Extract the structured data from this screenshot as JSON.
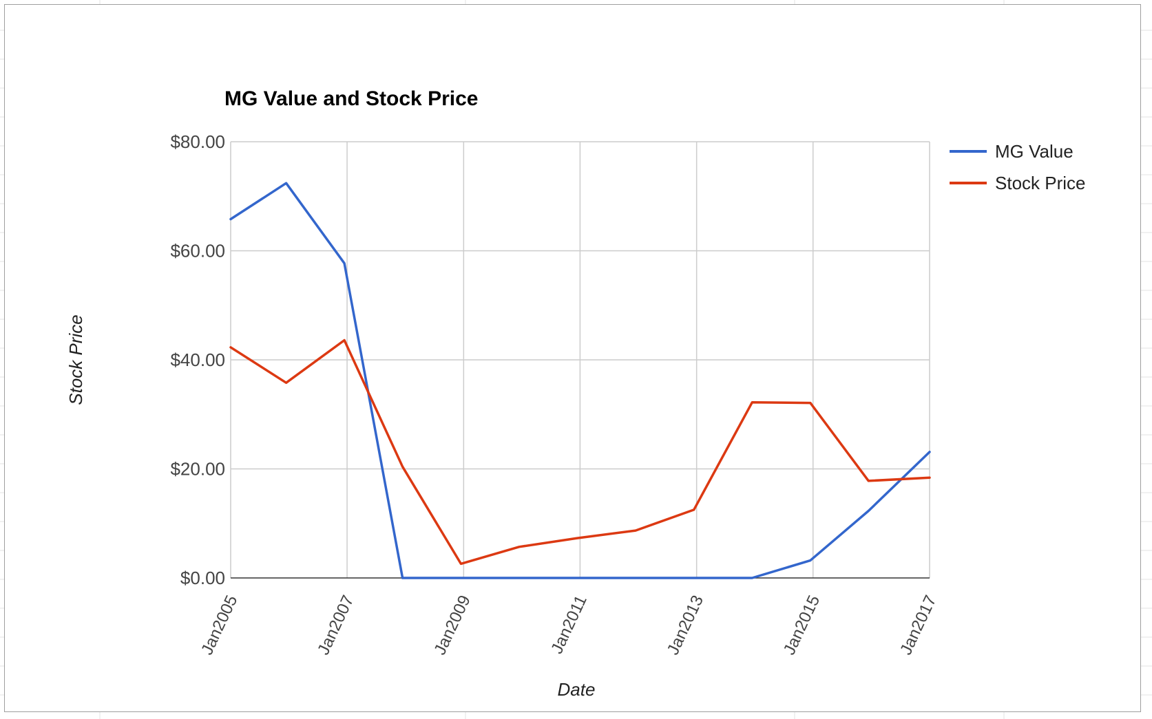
{
  "chart_data": {
    "type": "line",
    "title": "MG Value and Stock Price",
    "xlabel": "Date",
    "ylabel": "Stock Price",
    "x_range": [
      "2005-01-01",
      "2017-01-01"
    ],
    "x_ticks": [
      {
        "date": "2005-01-01",
        "label": "Jan2005"
      },
      {
        "date": "2007-01-01",
        "label": "Jan2007"
      },
      {
        "date": "2009-01-01",
        "label": "Jan2009"
      },
      {
        "date": "2011-01-01",
        "label": "Jan2011"
      },
      {
        "date": "2013-01-01",
        "label": "Jan2013"
      },
      {
        "date": "2015-01-01",
        "label": "Jan2015"
      },
      {
        "date": "2017-01-01",
        "label": "Jan2017"
      }
    ],
    "ylim": [
      0,
      80
    ],
    "y_ticks": [
      {
        "value": 0,
        "label": "$0.00"
      },
      {
        "value": 20,
        "label": "$20.00"
      },
      {
        "value": 40,
        "label": "$40.00"
      },
      {
        "value": 60,
        "label": "$60.00"
      },
      {
        "value": 80,
        "label": "$80.00"
      }
    ],
    "grid": true,
    "legend_position": "right",
    "series": [
      {
        "name": "MG Value",
        "color": "#3366cc",
        "points": [
          {
            "x": "2005-01-01",
            "y": 65.8
          },
          {
            "x": "2005-12-15",
            "y": 72.4
          },
          {
            "x": "2006-12-15",
            "y": 57.7
          },
          {
            "x": "2007-12-15",
            "y": 0
          },
          {
            "x": "2008-12-15",
            "y": 0
          },
          {
            "x": "2009-12-15",
            "y": 0
          },
          {
            "x": "2010-12-15",
            "y": 0
          },
          {
            "x": "2011-12-15",
            "y": 0
          },
          {
            "x": "2012-12-15",
            "y": 0
          },
          {
            "x": "2013-12-15",
            "y": 0
          },
          {
            "x": "2014-12-15",
            "y": 3.2
          },
          {
            "x": "2015-12-15",
            "y": 12.3
          },
          {
            "x": "2017-01-01",
            "y": 23.1
          }
        ]
      },
      {
        "name": "Stock Price",
        "color": "#dc3912",
        "points": [
          {
            "x": "2005-01-01",
            "y": 42.3
          },
          {
            "x": "2005-12-15",
            "y": 35.8
          },
          {
            "x": "2006-12-15",
            "y": 43.6
          },
          {
            "x": "2007-12-15",
            "y": 20.4
          },
          {
            "x": "2008-12-15",
            "y": 2.6
          },
          {
            "x": "2009-12-15",
            "y": 5.7
          },
          {
            "x": "2010-12-15",
            "y": 7.3
          },
          {
            "x": "2011-12-15",
            "y": 8.7
          },
          {
            "x": "2012-12-15",
            "y": 12.5
          },
          {
            "x": "2013-12-15",
            "y": 32.2
          },
          {
            "x": "2014-12-15",
            "y": 32.1
          },
          {
            "x": "2015-12-15",
            "y": 17.8
          },
          {
            "x": "2017-01-01",
            "y": 18.4
          }
        ]
      }
    ]
  }
}
